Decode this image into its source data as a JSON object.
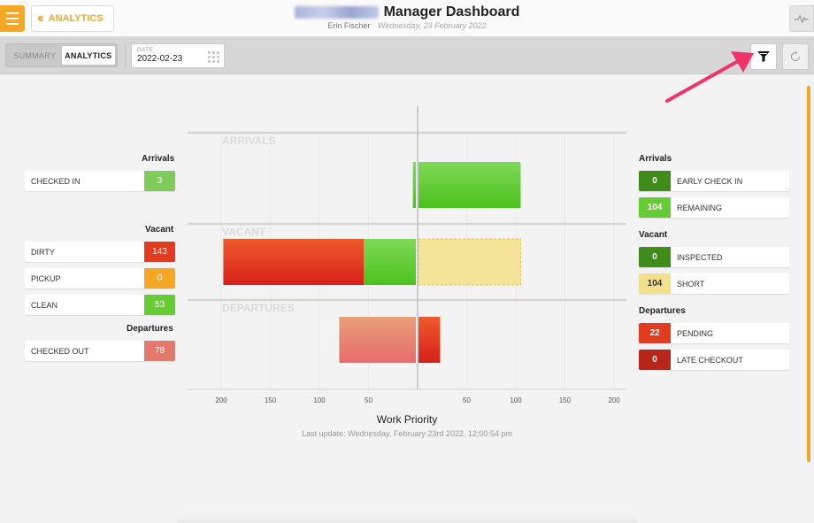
{
  "header": {
    "back_label": "ANALYTICS",
    "title": "Manager Dashboard",
    "user": "Erin Fischer",
    "date_long": "Wednesday, 23 February 2022"
  },
  "toolbar": {
    "tabs": [
      {
        "label": "SUMMARY",
        "active": false
      },
      {
        "label": "ANALYTICS",
        "active": true
      }
    ],
    "date_label": "DATE",
    "date_value": "2022-02-23"
  },
  "left_panel": {
    "arrivals_title": "Arrivals",
    "checked_in_label": "CHECKED IN",
    "checked_in_value": "3",
    "vacant_title": "Vacant",
    "dirty_label": "DIRTY",
    "dirty_value": "143",
    "pickup_label": "PICKUP",
    "pickup_value": "0",
    "clean_label": "CLEAN",
    "clean_value": "53",
    "departures_title": "Departures",
    "checked_out_label": "CHECKED OUT",
    "checked_out_value": "78"
  },
  "right_panel": {
    "arrivals_title": "Arrivals",
    "early_label": "EARLY CHECK IN",
    "early_value": "0",
    "remaining_label": "REMAINING",
    "remaining_value": "104",
    "vacant_title": "Vacant",
    "inspected_label": "INSPECTED",
    "inspected_value": "0",
    "short_label": "SHORT",
    "short_value": "104",
    "departures_title": "Departures",
    "pending_label": "PENDING",
    "pending_value": "22",
    "late_label": "LATE CHECKOUT",
    "late_value": "0"
  },
  "colors": {
    "accent": "#f5a623",
    "green": "#66cc33",
    "red": "#e33b1f",
    "dark_green": "#3f8c1a",
    "dark_red": "#b8261b",
    "light_red": "#e4786a",
    "yellow": "#f3e08a",
    "orange": "#f5a623",
    "arrow": "#f0346a"
  },
  "chart_data": {
    "type": "bar",
    "title": "Work Priority",
    "subtitle": "Last update: Wednesday, February 23rd 2022, 12:00:54 pm",
    "rows": [
      "ARRIVALS",
      "VACANT",
      "DEPARTURES"
    ],
    "tick_labels": [
      "200",
      "150",
      "100",
      "50",
      "50",
      "100",
      "150",
      "200"
    ],
    "xlim": [
      -200,
      200
    ],
    "series": [
      {
        "row": "ARRIVALS",
        "side": "left",
        "segments": [
          {
            "label": "CHECKED IN",
            "value": 3,
            "color": "green"
          }
        ]
      },
      {
        "row": "ARRIVALS",
        "side": "right",
        "segments": [
          {
            "label": "REMAINING",
            "value": 104,
            "color": "green"
          }
        ]
      },
      {
        "row": "VACANT",
        "side": "left",
        "segments": [
          {
            "label": "CLEAN",
            "value": 53,
            "color": "green"
          },
          {
            "label": "DIRTY",
            "value": 143,
            "color": "red"
          }
        ]
      },
      {
        "row": "VACANT",
        "side": "right",
        "segments": [
          {
            "label": "SHORT",
            "value": 104,
            "color": "yellow",
            "dashed": true
          }
        ]
      },
      {
        "row": "DEPARTURES",
        "side": "left",
        "segments": [
          {
            "label": "CHECKED OUT",
            "value": 78,
            "color": "light_red"
          }
        ]
      },
      {
        "row": "DEPARTURES",
        "side": "right",
        "segments": [
          {
            "label": "PENDING",
            "value": 22,
            "color": "red"
          }
        ]
      }
    ]
  }
}
